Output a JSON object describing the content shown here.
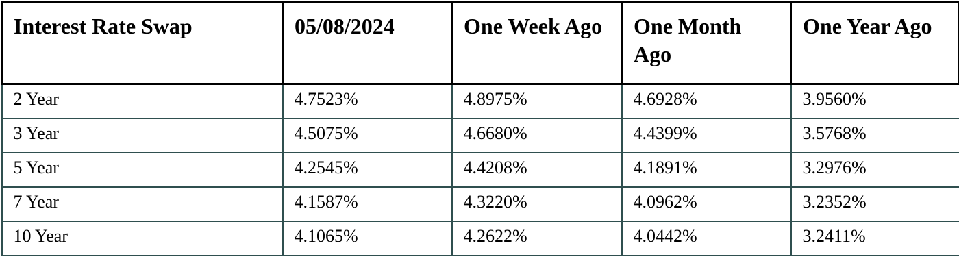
{
  "table": {
    "headers": [
      "Interest Rate Swap",
      "05/08/2024",
      "One Week Ago",
      "One Month Ago",
      "One Year Ago"
    ],
    "rows": [
      [
        "2 Year",
        "4.7523%",
        "4.8975%",
        "4.6928%",
        "3.9560%"
      ],
      [
        "3 Year",
        "4.5075%",
        "4.6680%",
        "4.4399%",
        "3.5768%"
      ],
      [
        "5 Year",
        "4.2545%",
        "4.4208%",
        "4.1891%",
        "3.2976%"
      ],
      [
        "7 Year",
        "4.1587%",
        "4.3220%",
        "4.0962%",
        "3.2352%"
      ],
      [
        "10 Year",
        "4.1065%",
        "4.2622%",
        "4.0442%",
        "3.2411%"
      ]
    ]
  },
  "colors": {
    "header_border": "#000000",
    "body_border": "#2f4f4f"
  }
}
